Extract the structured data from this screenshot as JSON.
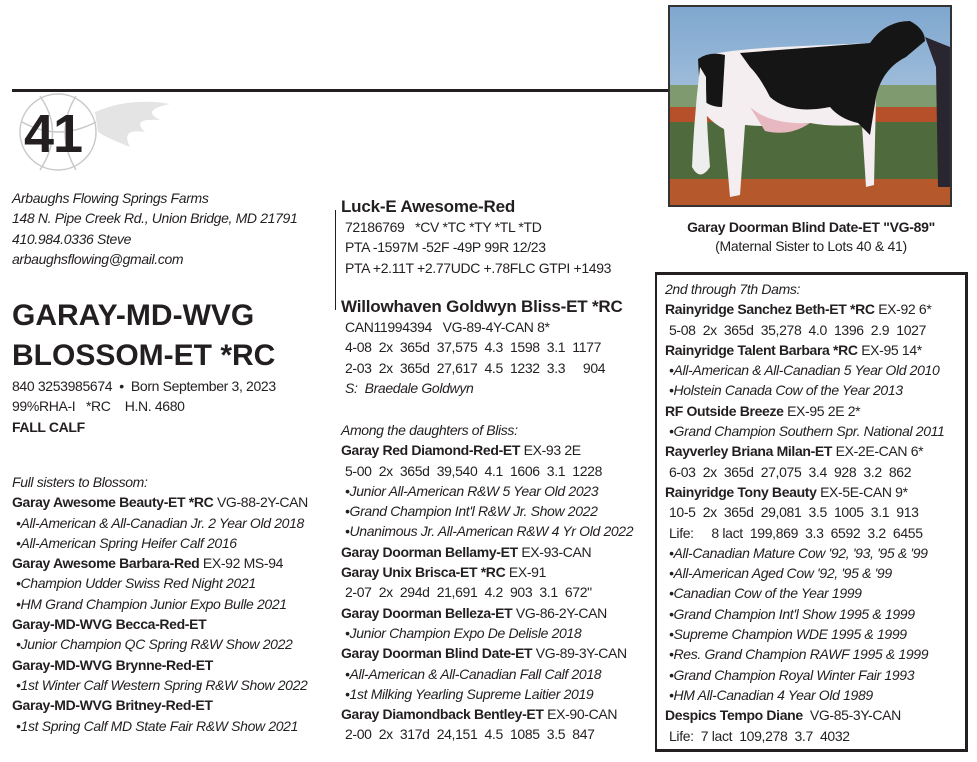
{
  "lot_number": "41",
  "consignor": {
    "farm": "Arbaughs Flowing Springs Farms",
    "address": "148 N. Pipe Creek Rd., Union Bridge, MD 21791",
    "phone": "410.984.0336 Steve",
    "email": "arbaughsflowing@gmail.com"
  },
  "animal": {
    "name_line1": "GARAY-MD-WVG",
    "name_line2": "BLOSSOM-ET *RC",
    "id_born": "840 3253985674  •  Born September 3, 2023",
    "genetics": "99%RHA-I   *RC    H.N. 4680",
    "class": "FALL CALF"
  },
  "full_sisters": {
    "heading": "Full sisters to Blossom:",
    "entries": [
      {
        "name": "Garay Awesome Beauty-ET *RC",
        "rating": " VG-88-2Y-CAN",
        "notes": [
          "•All-American & All-Canadian Jr. 2 Year Old 2018",
          "•All-American Spring Heifer Calf 2016"
        ]
      },
      {
        "name": "Garay Awesome Barbara-Red",
        "rating": " EX-92 MS-94",
        "notes": [
          "•Champion Udder Swiss Red Night 2021",
          "•HM Grand Champion Junior Expo Bulle 2021"
        ]
      },
      {
        "name": "Garay-MD-WVG Becca-Red-ET",
        "rating": "",
        "notes": [
          "•Junior Champion QC Spring R&W Show 2022"
        ]
      },
      {
        "name": "Garay-MD-WVG Brynne-Red-ET",
        "rating": "",
        "notes": [
          "•1st Winter Calf Western Spring R&W Show 2022"
        ]
      },
      {
        "name": "Garay-MD-WVG Britney-Red-ET",
        "rating": "",
        "notes": [
          "•1st Spring Calf MD State Fair R&W Show 2021"
        ]
      }
    ]
  },
  "sire": {
    "name": "Luck-E Awesome-Red",
    "lines": [
      "72186769   *CV *TC *TY *TL *TD",
      "PTA -1597M -52F -49P 99R 12/23",
      "PTA +2.11T +2.77UDC +.78FLC GTPI +1493"
    ]
  },
  "dam": {
    "name": "Willowhaven Goldwyn Bliss-ET *RC",
    "lines": [
      "CAN11994394   VG-89-4Y-CAN 8*",
      "4-08  2x  365d  37,575  4.3  1598  3.1  1177",
      "2-03  2x  365d  27,617  4.5  1232  3.3     904"
    ],
    "sire_line": "S:  Braedale Goldwyn"
  },
  "daughters": {
    "heading": "Among the daughters of Bliss:",
    "entries": [
      {
        "name": "Garay Red Diamond-Red-ET",
        "rating": " EX-93 2E",
        "records": [
          "5-00  2x  365d  39,540  4.1  1606  3.1  1228"
        ],
        "notes": [
          "•Junior All-American R&W 5 Year Old 2023",
          "•Grand Champion Int'l R&W Jr. Show 2022",
          "•Unanimous Jr. All-American R&W 4 Yr Old 2022"
        ]
      },
      {
        "name": "Garay Doorman Bellamy-ET",
        "rating": " EX-93-CAN",
        "records": [],
        "notes": []
      },
      {
        "name": "Garay Unix Brisca-ET *RC",
        "rating": " EX-91",
        "records": [
          "2-07  2x  294d  21,691  4.2  903  3.1  672\""
        ],
        "notes": []
      },
      {
        "name": "Garay Doorman Belleza-ET",
        "rating": " VG-86-2Y-CAN",
        "records": [],
        "notes": [
          "•Junior Champion Expo De Delisle 2018"
        ]
      },
      {
        "name": "Garay Doorman Blind Date-ET",
        "rating": " VG-89-3Y-CAN",
        "records": [],
        "notes": [
          "•All-American & All-Canadian Fall Calf 2018",
          "•1st Milking Yearling Supreme Laitier 2019"
        ]
      },
      {
        "name": "Garay Diamondback Bentley-ET",
        "rating": " EX-90-CAN",
        "records": [
          "2-00  2x  317d  24,151  4.5  1085  3.5  847"
        ],
        "notes": []
      }
    ]
  },
  "photo": {
    "caption": "Garay Doorman Blind Date-ET \"VG-89\"",
    "subcaption": "(Maternal Sister to Lots 40 & 41)"
  },
  "dams_box": {
    "heading": "2nd through 7th Dams:",
    "entries": [
      {
        "name": "Rainyridge Sanchez Beth-ET *RC",
        "rating": " EX-92 6*",
        "records": [
          "5-08  2x  365d  35,278  4.0  1396  2.9  1027"
        ],
        "notes": []
      },
      {
        "name": "Rainyridge Talent Barbara *RC",
        "rating": " EX-95 14*",
        "records": [],
        "notes": [
          "•All-American & All-Canadian 5 Year Old 2010",
          "•Holstein Canada Cow of the Year 2013"
        ]
      },
      {
        "name": "RF Outside Breeze",
        "rating": " EX-95 2E 2*",
        "records": [],
        "notes": [
          "•Grand Champion Southern Spr. National 2011"
        ]
      },
      {
        "name": "Rayverley Briana Milan-ET",
        "rating": " EX-2E-CAN 6*",
        "records": [
          "6-03  2x  365d  27,075  3.4  928  3.2  862"
        ],
        "notes": []
      },
      {
        "name": "Rainyridge Tony Beauty",
        "rating": " EX-5E-CAN 9*",
        "records": [
          "10-5  2x  365d  29,081  3.5  1005  3.1  913",
          "Life:     8 lact  199,869  3.3  6592  3.2  6455"
        ],
        "notes": [
          "•All-Canadian Mature Cow '92, '93, '95 & '99",
          "•All-American Aged Cow '92, '95 & '99",
          "•Canadian Cow of the Year 1999",
          "•Grand Champion Int'l Show 1995 & 1999",
          "•Supreme Champion WDE 1995 & 1999",
          "•Res. Grand Champion RAWF 1995 & 1999",
          "•Grand Champion Royal Winter Fair 1993",
          "•HM All-Canadian 4 Year Old 1989"
        ]
      },
      {
        "name": "Despics Tempo Diane",
        "rating": "  VG-85-3Y-CAN",
        "records": [
          "Life:  7 lact  109,278  3.7  4032"
        ],
        "notes": []
      }
    ]
  }
}
